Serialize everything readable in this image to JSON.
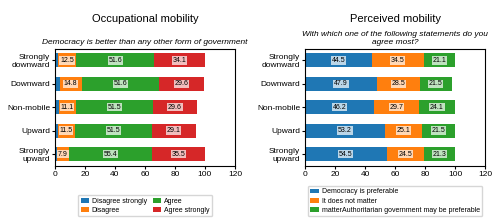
{
  "chart_data": [
    {
      "type": "bar",
      "orientation": "horizontal",
      "stacked": true,
      "data_labels": true,
      "legend": "lower center",
      "title": "Occupational mobility",
      "subtitle": "Democracy is better than any other form of government",
      "categories": [
        "Strongly\ndownward",
        "Downward",
        "Non-mobile",
        "Upward",
        "Strongly\nupward"
      ],
      "series": [
        {
          "name": "Disagree strongly",
          "values": [
            1.8,
            3.1,
            2.6,
            1.7,
            1.4
          ],
          "value_labels": [
            null,
            null,
            null,
            null,
            null
          ]
        },
        {
          "name": "Disagree",
          "values": [
            12.5,
            14.8,
            11.1,
            11.5,
            7.9
          ]
        },
        {
          "name": "Agree",
          "values": [
            51.6,
            51.6,
            51.5,
            51.5,
            55.4
          ]
        },
        {
          "name": "Agree strongly",
          "values": [
            34.1,
            29.6,
            29.6,
            29.1,
            35.5
          ]
        }
      ],
      "xlim": [
        0,
        120
      ],
      "xticks": [
        0,
        20,
        40,
        60,
        80,
        100,
        120
      ]
    },
    {
      "type": "bar",
      "orientation": "horizontal",
      "stacked": true,
      "data_labels": true,
      "legend": "lower center",
      "title": "Perceived mobility",
      "subtitle": "With which one of the following statements do you agree most?",
      "categories": [
        "Strongly\ndownward",
        "Downward",
        "Non-mobile",
        "Upward",
        "Strongly\nupward"
      ],
      "series": [
        {
          "name": "Democracy is preferable",
          "values": [
            44.5,
            47.9,
            46.2,
            53.2,
            54.5
          ]
        },
        {
          "name": "It does not matter",
          "values": [
            34.5,
            28.5,
            29.7,
            25.1,
            24.5
          ]
        },
        {
          "name": "matterAuthoritarian government may be preferable",
          "values": [
            21.1,
            21.5,
            24.1,
            21.5,
            21.3
          ]
        }
      ],
      "xlim": [
        0,
        120
      ],
      "xticks": [
        0,
        20,
        40,
        60,
        80,
        100,
        120
      ]
    }
  ]
}
